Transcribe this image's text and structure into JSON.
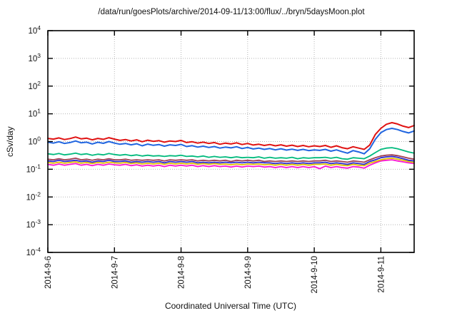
{
  "title": "/data/run/goesPlots/archive/2014-09-11/13:00/flux/../bryn/5daysMoon.plot",
  "colors": {
    "axis": "#000000",
    "grid": "#b5b5b5",
    "background": "#ffffff"
  },
  "chart_data": {
    "type": "line",
    "title": "/data/run/goesPlots/archive/2014-09-11/13:00/flux/../bryn/5daysMoon.plot",
    "xlabel": "Coordinated Universal Time (UTC)",
    "ylabel": "cSv/day",
    "y_scale": "log10",
    "ylim_exponents": [
      -4,
      4
    ],
    "ytick_exponents": [
      4,
      3,
      2,
      1,
      0,
      -1,
      -2,
      -3,
      -4
    ],
    "grid": true,
    "legend": "none",
    "x_range_days": [
      0,
      5.5
    ],
    "xtick_days": [
      0,
      1,
      2,
      3,
      4,
      5
    ],
    "xtick_labels": [
      "2014-9-6",
      "2014-9-7",
      "2014-9-8",
      "2014-9-9",
      "2014-9-10",
      "2014-9-11"
    ],
    "x_start_hour": 0,
    "x_step_hours": 2,
    "series": [
      {
        "name": "red",
        "color": "#e01212",
        "width": 2,
        "values": [
          1.3,
          1.22,
          1.35,
          1.18,
          1.28,
          1.45,
          1.25,
          1.32,
          1.15,
          1.3,
          1.2,
          1.38,
          1.22,
          1.1,
          1.18,
          1.05,
          1.15,
          0.98,
          1.12,
          1.02,
          1.08,
          0.95,
          1.05,
          1.0,
          1.1,
          0.92,
          0.98,
          0.88,
          0.95,
          0.85,
          0.92,
          0.8,
          0.88,
          0.82,
          0.9,
          0.78,
          0.85,
          0.75,
          0.8,
          0.72,
          0.78,
          0.7,
          0.76,
          0.68,
          0.74,
          0.66,
          0.72,
          0.65,
          0.7,
          0.66,
          0.72,
          0.62,
          0.7,
          0.6,
          0.55,
          0.65,
          0.58,
          0.52,
          0.75,
          1.8,
          3.0,
          4.2,
          4.8,
          4.3,
          3.6,
          3.2,
          3.8
        ]
      },
      {
        "name": "blue",
        "color": "#2065e0",
        "width": 2,
        "values": [
          0.95,
          0.88,
          0.98,
          0.85,
          0.92,
          1.05,
          0.9,
          0.95,
          0.82,
          0.94,
          0.86,
          1.0,
          0.88,
          0.8,
          0.85,
          0.76,
          0.83,
          0.7,
          0.81,
          0.73,
          0.78,
          0.68,
          0.76,
          0.72,
          0.79,
          0.66,
          0.71,
          0.63,
          0.68,
          0.61,
          0.66,
          0.58,
          0.63,
          0.59,
          0.65,
          0.56,
          0.61,
          0.54,
          0.58,
          0.52,
          0.56,
          0.5,
          0.55,
          0.49,
          0.53,
          0.48,
          0.52,
          0.47,
          0.5,
          0.48,
          0.52,
          0.45,
          0.5,
          0.43,
          0.38,
          0.47,
          0.42,
          0.36,
          0.55,
          1.2,
          2.1,
          2.7,
          3.0,
          2.7,
          2.3,
          2.05,
          2.4
        ]
      },
      {
        "name": "green",
        "color": "#00ba7c",
        "width": 1.8,
        "values": [
          0.36,
          0.34,
          0.37,
          0.33,
          0.35,
          0.38,
          0.34,
          0.36,
          0.32,
          0.35,
          0.33,
          0.37,
          0.34,
          0.32,
          0.34,
          0.31,
          0.33,
          0.3,
          0.32,
          0.3,
          0.31,
          0.29,
          0.31,
          0.3,
          0.32,
          0.29,
          0.3,
          0.28,
          0.3,
          0.27,
          0.29,
          0.27,
          0.28,
          0.26,
          0.28,
          0.26,
          0.27,
          0.26,
          0.28,
          0.25,
          0.27,
          0.25,
          0.26,
          0.25,
          0.27,
          0.24,
          0.26,
          0.25,
          0.26,
          0.26,
          0.27,
          0.25,
          0.27,
          0.24,
          0.23,
          0.26,
          0.25,
          0.24,
          0.3,
          0.4,
          0.52,
          0.58,
          0.6,
          0.55,
          0.48,
          0.42,
          0.38
        ]
      },
      {
        "name": "dark-red",
        "color": "#a03d50",
        "width": 1.8,
        "values": [
          0.23,
          0.22,
          0.24,
          0.22,
          0.23,
          0.25,
          0.22,
          0.23,
          0.21,
          0.23,
          0.22,
          0.24,
          0.22,
          0.22,
          0.23,
          0.21,
          0.22,
          0.21,
          0.22,
          0.21,
          0.22,
          0.2,
          0.22,
          0.21,
          0.22,
          0.21,
          0.22,
          0.2,
          0.21,
          0.2,
          0.21,
          0.2,
          0.21,
          0.19,
          0.21,
          0.2,
          0.21,
          0.2,
          0.21,
          0.19,
          0.2,
          0.19,
          0.2,
          0.19,
          0.2,
          0.19,
          0.2,
          0.19,
          0.2,
          0.2,
          0.21,
          0.19,
          0.2,
          0.19,
          0.18,
          0.2,
          0.19,
          0.18,
          0.22,
          0.26,
          0.3,
          0.32,
          0.33,
          0.31,
          0.28,
          0.25,
          0.23
        ]
      },
      {
        "name": "navy",
        "color": "#2a2ad0",
        "width": 1.8,
        "values": [
          0.2,
          0.19,
          0.21,
          0.19,
          0.2,
          0.21,
          0.19,
          0.2,
          0.18,
          0.2,
          0.19,
          0.21,
          0.19,
          0.19,
          0.2,
          0.18,
          0.19,
          0.18,
          0.19,
          0.18,
          0.19,
          0.17,
          0.19,
          0.18,
          0.19,
          0.18,
          0.19,
          0.17,
          0.18,
          0.17,
          0.18,
          0.17,
          0.18,
          0.17,
          0.18,
          0.17,
          0.18,
          0.17,
          0.18,
          0.17,
          0.17,
          0.16,
          0.17,
          0.16,
          0.17,
          0.16,
          0.17,
          0.16,
          0.17,
          0.17,
          0.18,
          0.16,
          0.17,
          0.16,
          0.15,
          0.17,
          0.16,
          0.15,
          0.19,
          0.22,
          0.26,
          0.28,
          0.29,
          0.27,
          0.24,
          0.21,
          0.2
        ]
      },
      {
        "name": "yellow",
        "color": "#e0be00",
        "width": 1.8,
        "values": [
          0.175,
          0.165,
          0.18,
          0.165,
          0.175,
          0.185,
          0.165,
          0.175,
          0.16,
          0.175,
          0.165,
          0.18,
          0.17,
          0.165,
          0.175,
          0.16,
          0.17,
          0.155,
          0.165,
          0.155,
          0.165,
          0.15,
          0.165,
          0.155,
          0.165,
          0.155,
          0.165,
          0.15,
          0.16,
          0.15,
          0.16,
          0.15,
          0.155,
          0.145,
          0.155,
          0.145,
          0.155,
          0.15,
          0.155,
          0.145,
          0.15,
          0.14,
          0.15,
          0.14,
          0.15,
          0.14,
          0.15,
          0.14,
          0.15,
          0.15,
          0.155,
          0.14,
          0.15,
          0.14,
          0.135,
          0.15,
          0.14,
          0.135,
          0.165,
          0.19,
          0.22,
          0.24,
          0.25,
          0.23,
          0.21,
          0.19,
          0.175
        ]
      },
      {
        "name": "magenta",
        "color": "#f914d4",
        "width": 1.8,
        "values": [
          0.15,
          0.14,
          0.155,
          0.14,
          0.15,
          0.16,
          0.14,
          0.15,
          0.135,
          0.15,
          0.14,
          0.155,
          0.145,
          0.14,
          0.15,
          0.135,
          0.145,
          0.13,
          0.14,
          0.13,
          0.14,
          0.125,
          0.14,
          0.13,
          0.14,
          0.13,
          0.14,
          0.125,
          0.135,
          0.125,
          0.135,
          0.125,
          0.13,
          0.12,
          0.13,
          0.12,
          0.13,
          0.125,
          0.13,
          0.12,
          0.125,
          0.115,
          0.125,
          0.115,
          0.125,
          0.115,
          0.125,
          0.115,
          0.125,
          0.105,
          0.13,
          0.115,
          0.125,
          0.115,
          0.11,
          0.125,
          0.12,
          0.11,
          0.14,
          0.17,
          0.2,
          0.21,
          0.22,
          0.2,
          0.185,
          0.17,
          0.16
        ]
      }
    ]
  }
}
